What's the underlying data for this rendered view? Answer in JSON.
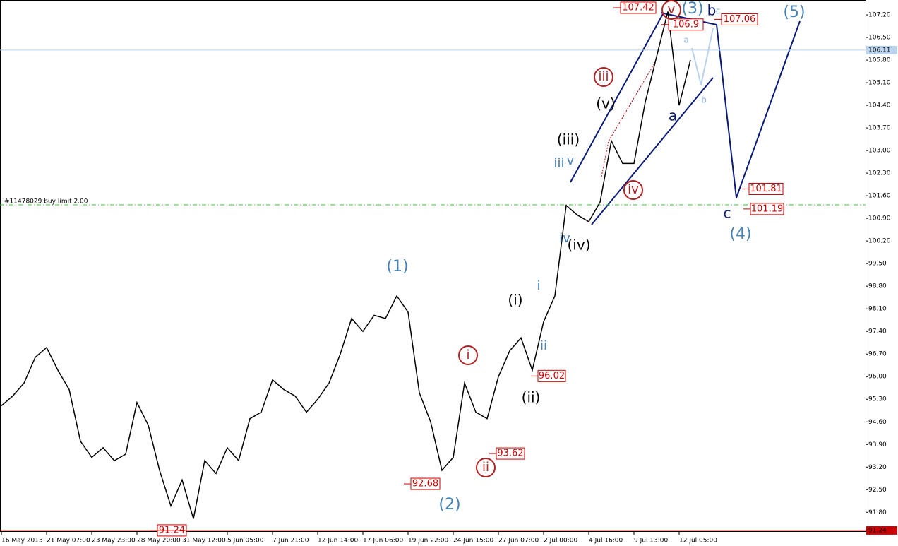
{
  "chart_data": {
    "type": "line",
    "series": [
      {
        "name": "Price",
        "color": "#000000",
        "values": [
          95.1,
          95.4,
          95.8,
          96.6,
          96.9,
          96.2,
          95.6,
          94.0,
          93.5,
          93.8,
          93.4,
          93.6,
          95.2,
          94.5,
          93.1,
          92.0,
          92.8,
          91.6,
          93.4,
          93.0,
          93.8,
          93.4,
          94.7,
          94.9,
          95.9,
          95.6,
          95.4,
          94.9,
          95.3,
          95.8,
          96.7,
          97.8,
          97.4,
          97.9,
          97.8,
          98.5,
          98.0,
          95.5,
          94.6,
          93.1,
          93.5,
          95.8,
          94.9,
          94.7,
          96.0,
          96.8,
          97.2,
          96.2,
          97.7,
          98.5,
          101.3,
          101.0,
          100.8,
          101.4,
          103.3,
          102.6,
          102.6,
          104.5,
          105.9,
          107.3,
          104.4,
          105.8
        ]
      }
    ],
    "ylim": [
      91.26,
      107.66
    ],
    "yticks": [
      {
        "value": 107.2,
        "label": "107.20"
      },
      {
        "value": 106.5,
        "label": "106.50"
      },
      {
        "value": 105.8,
        "label": "105.80"
      },
      {
        "value": 105.1,
        "label": "105.10"
      },
      {
        "value": 104.4,
        "label": "104.40"
      },
      {
        "value": 103.7,
        "label": "103.70"
      },
      {
        "value": 103.0,
        "label": "103.00"
      },
      {
        "value": 102.3,
        "label": "102.30"
      },
      {
        "value": 101.6,
        "label": "101.60"
      },
      {
        "value": 100.9,
        "label": "100.90"
      },
      {
        "value": 100.2,
        "label": "100.20"
      },
      {
        "value": 99.5,
        "label": "99.50"
      },
      {
        "value": 98.8,
        "label": "98.80"
      },
      {
        "value": 98.1,
        "label": "98.10"
      },
      {
        "value": 97.4,
        "label": "97.40"
      },
      {
        "value": 96.7,
        "label": "96.70"
      },
      {
        "value": 96.0,
        "label": "96.00"
      },
      {
        "value": 95.3,
        "label": "95.30"
      },
      {
        "value": 94.6,
        "label": "94.60"
      },
      {
        "value": 93.9,
        "label": "93.90"
      },
      {
        "value": 93.2,
        "label": "93.20"
      },
      {
        "value": 92.5,
        "label": "92.50"
      },
      {
        "value": 91.8,
        "label": "91.80"
      }
    ],
    "xticks": [
      "16 May 2013",
      "21 May 07:00",
      "23 May 23:00",
      "28 May 20:00",
      "31 May 12:00",
      "5 Jun 05:00",
      "7 Jun 21:00",
      "12 Jun 14:00",
      "17 Jun 06:00",
      "19 Jun 22:00",
      "24 Jun 15:00",
      "27 Jun 07:00",
      "2 Jul 00:00",
      "4 Jul 16:00",
      "9 Jul 13:00",
      "12 Jul 05:00"
    ],
    "current_price": 106.11,
    "order_level": 101.32,
    "price_labels": [
      107.42,
      106.9,
      107.06,
      101.81,
      101.19,
      96.02,
      93.62,
      92.68,
      91.24
    ],
    "annotations": [
      "(1)",
      "(2)",
      "(3)",
      "(4)",
      "(5)",
      "i",
      "ii",
      "iii",
      "iv",
      "v",
      "(i)",
      "(ii)",
      "(iii)",
      "(iv)",
      "(v)",
      "i",
      "ii",
      "iii",
      "iv",
      "v",
      "a",
      "b",
      "c",
      "a",
      "b",
      "c",
      "#11478029 buy limit 2.00"
    ]
  }
}
